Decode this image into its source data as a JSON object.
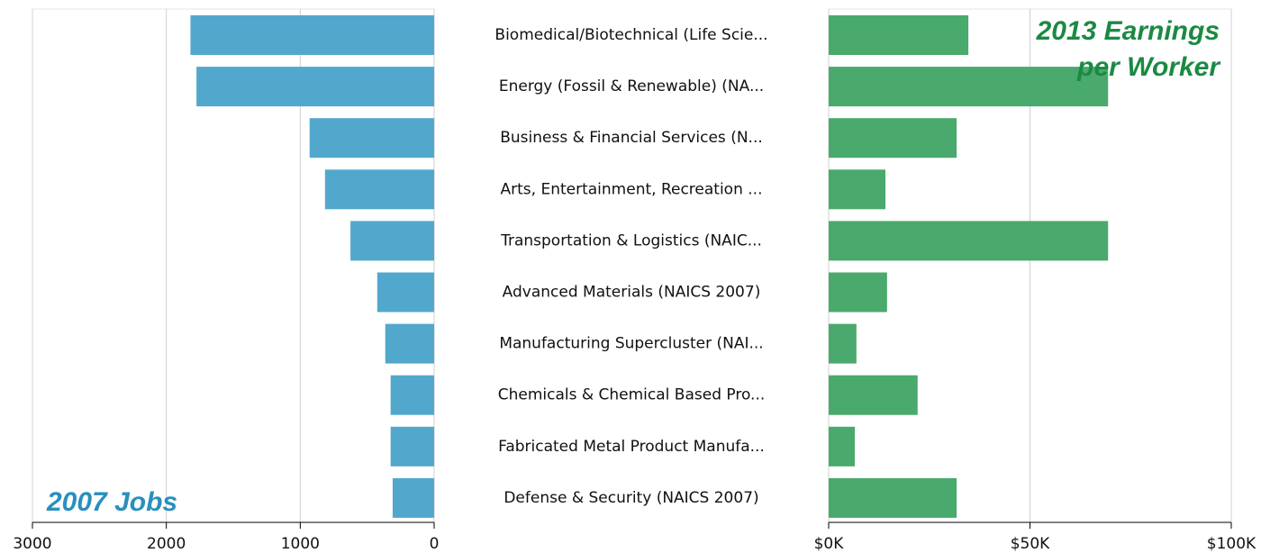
{
  "chart_data": {
    "type": "bar",
    "categories": [
      "Biomedical/Biotechnical (Life Scie...",
      "Energy (Fossil & Renewable) (NA...",
      "Business & Financial Services (N...",
      "Arts, Entertainment, Recreation ...",
      "Transportation & Logistics (NAIC...",
      "Advanced Materials (NAICS 2007)",
      "Manufacturing Supercluster (NAI...",
      "Chemicals & Chemical Based Pro...",
      "Fabricated Metal Product Manufa...",
      "Defense & Security (NAICS 2007)"
    ],
    "series": [
      {
        "name": "2007 Jobs",
        "color": "#52a8cc",
        "values": [
          1820,
          1775,
          930,
          815,
          625,
          425,
          365,
          325,
          325,
          310
        ],
        "xlim": [
          3000,
          0
        ],
        "xticks": [
          3000,
          2000,
          1000,
          0
        ]
      },
      {
        "name": "2013 Earnings per Worker",
        "color": "#4aa96c",
        "values": [
          34700,
          69400,
          31800,
          14100,
          69400,
          14500,
          6900,
          22100,
          6500,
          31800
        ],
        "xlim": [
          0,
          100000
        ],
        "xticks": [
          {
            "value": 0,
            "label": "$0K"
          },
          {
            "value": 50000,
            "label": "$50K"
          },
          {
            "value": 100000,
            "label": "$100K"
          }
        ]
      }
    ],
    "grid": true
  }
}
